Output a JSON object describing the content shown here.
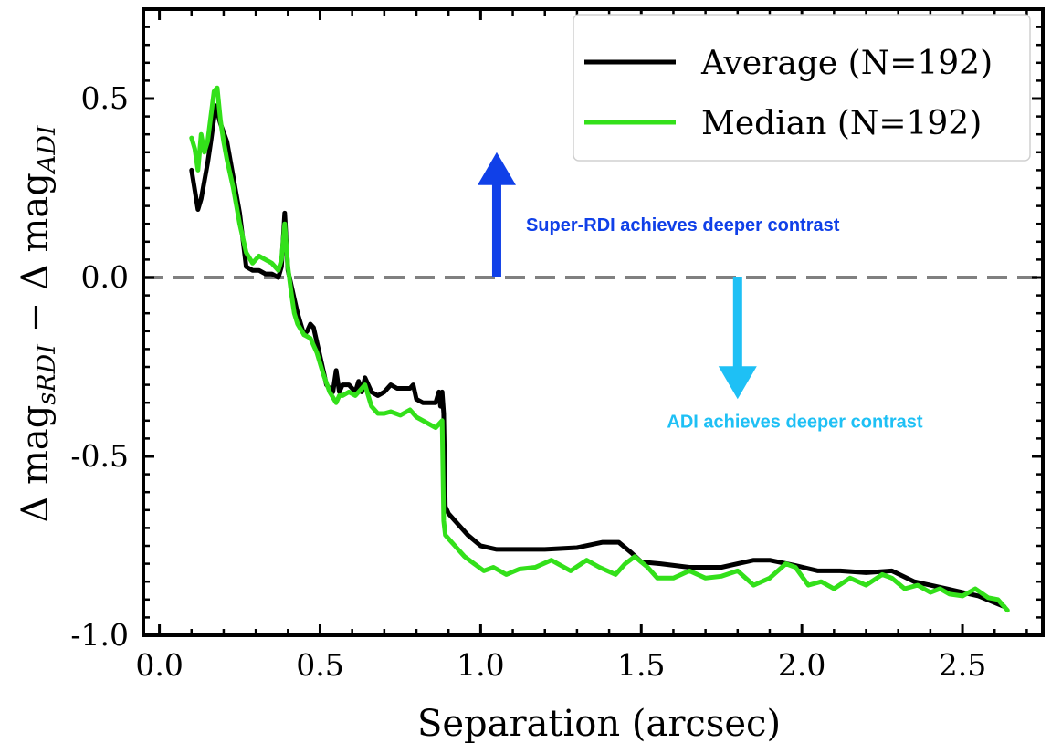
{
  "chart_data": {
    "type": "line",
    "xlabel": "Separation (arcsec)",
    "ylabel": "Δ mag_{sRDI} − Δ mag_{ADI}",
    "ylabel_parts": {
      "pre": "Δ mag",
      "sub1": "sRDI",
      "mid": " − Δ mag",
      "sub2": "ADI"
    },
    "xlim": [
      -0.05,
      2.75
    ],
    "ylim": [
      -1.0,
      0.75
    ],
    "xticks": [
      0.0,
      0.5,
      1.0,
      1.5,
      2.0,
      2.5
    ],
    "xtick_labels": [
      "0.0",
      "0.5",
      "1.0",
      "1.5",
      "2.0",
      "2.5"
    ],
    "yticks": [
      -1.0,
      -0.5,
      0.0,
      0.5
    ],
    "ytick_labels": [
      "-1.0",
      "-0.5",
      "0.0",
      "0.5"
    ],
    "grid": false,
    "legend_position": "top-right",
    "reference_line": {
      "y": 0.0,
      "style": "dashed",
      "color": "#808080"
    },
    "series": [
      {
        "name": "Average (N=192)",
        "color": "#000000",
        "x": [
          0.1,
          0.12,
          0.13,
          0.15,
          0.16,
          0.175,
          0.19,
          0.21,
          0.23,
          0.25,
          0.27,
          0.29,
          0.31,
          0.33,
          0.35,
          0.37,
          0.38,
          0.39,
          0.4,
          0.41,
          0.42,
          0.43,
          0.45,
          0.46,
          0.47,
          0.48,
          0.5,
          0.52,
          0.54,
          0.55,
          0.56,
          0.57,
          0.59,
          0.61,
          0.62,
          0.63,
          0.64,
          0.66,
          0.68,
          0.7,
          0.72,
          0.74,
          0.76,
          0.78,
          0.79,
          0.8,
          0.82,
          0.84,
          0.86,
          0.87,
          0.875,
          0.88,
          0.885,
          0.89,
          0.9,
          0.93,
          0.96,
          1.0,
          1.05,
          1.1,
          1.2,
          1.3,
          1.38,
          1.43,
          1.47,
          1.5,
          1.56,
          1.65,
          1.75,
          1.8,
          1.85,
          1.9,
          1.98,
          2.05,
          2.12,
          2.2,
          2.28,
          2.35,
          2.45,
          2.55,
          2.63
        ],
        "y": [
          0.3,
          0.19,
          0.22,
          0.32,
          0.38,
          0.48,
          0.43,
          0.38,
          0.28,
          0.18,
          0.03,
          0.02,
          0.02,
          0.01,
          0.01,
          0.0,
          0.03,
          0.18,
          0.02,
          -0.02,
          -0.06,
          -0.1,
          -0.16,
          -0.15,
          -0.13,
          -0.14,
          -0.22,
          -0.3,
          -0.32,
          -0.26,
          -0.32,
          -0.3,
          -0.3,
          -0.32,
          -0.29,
          -0.32,
          -0.28,
          -0.32,
          -0.33,
          -0.32,
          -0.3,
          -0.31,
          -0.31,
          -0.31,
          -0.3,
          -0.34,
          -0.35,
          -0.35,
          -0.35,
          -0.32,
          -0.36,
          -0.32,
          -0.38,
          -0.64,
          -0.66,
          -0.69,
          -0.72,
          -0.75,
          -0.76,
          -0.76,
          -0.76,
          -0.755,
          -0.74,
          -0.74,
          -0.77,
          -0.795,
          -0.8,
          -0.81,
          -0.81,
          -0.8,
          -0.79,
          -0.79,
          -0.805,
          -0.82,
          -0.82,
          -0.825,
          -0.82,
          -0.85,
          -0.87,
          -0.89,
          -0.92
        ]
      },
      {
        "name": "Median (N=192)",
        "color": "#33e01a",
        "x": [
          0.1,
          0.11,
          0.12,
          0.13,
          0.14,
          0.15,
          0.16,
          0.17,
          0.18,
          0.19,
          0.2,
          0.21,
          0.23,
          0.25,
          0.27,
          0.29,
          0.31,
          0.33,
          0.35,
          0.37,
          0.38,
          0.39,
          0.4,
          0.41,
          0.42,
          0.43,
          0.45,
          0.47,
          0.49,
          0.51,
          0.53,
          0.55,
          0.56,
          0.57,
          0.59,
          0.61,
          0.63,
          0.64,
          0.66,
          0.68,
          0.7,
          0.72,
          0.75,
          0.78,
          0.8,
          0.82,
          0.84,
          0.86,
          0.88,
          0.885,
          0.89,
          0.9,
          0.92,
          0.95,
          0.98,
          1.01,
          1.04,
          1.08,
          1.12,
          1.17,
          1.22,
          1.28,
          1.33,
          1.37,
          1.42,
          1.45,
          1.48,
          1.52,
          1.55,
          1.6,
          1.65,
          1.7,
          1.75,
          1.8,
          1.85,
          1.9,
          1.95,
          1.98,
          2.02,
          2.06,
          2.1,
          2.15,
          2.2,
          2.25,
          2.28,
          2.32,
          2.36,
          2.4,
          2.43,
          2.46,
          2.5,
          2.54,
          2.58,
          2.61,
          2.64
        ],
        "y": [
          0.39,
          0.36,
          0.3,
          0.4,
          0.35,
          0.38,
          0.45,
          0.52,
          0.53,
          0.44,
          0.38,
          0.33,
          0.25,
          0.15,
          0.07,
          0.04,
          0.06,
          0.05,
          0.04,
          0.02,
          0.05,
          0.15,
          0.03,
          -0.04,
          -0.1,
          -0.13,
          -0.16,
          -0.17,
          -0.21,
          -0.27,
          -0.32,
          -0.35,
          -0.33,
          -0.33,
          -0.32,
          -0.33,
          -0.31,
          -0.3,
          -0.36,
          -0.38,
          -0.38,
          -0.375,
          -0.385,
          -0.37,
          -0.39,
          -0.4,
          -0.41,
          -0.42,
          -0.4,
          -0.68,
          -0.72,
          -0.73,
          -0.75,
          -0.78,
          -0.8,
          -0.82,
          -0.81,
          -0.83,
          -0.815,
          -0.81,
          -0.79,
          -0.82,
          -0.79,
          -0.81,
          -0.83,
          -0.8,
          -0.78,
          -0.81,
          -0.84,
          -0.84,
          -0.82,
          -0.84,
          -0.835,
          -0.82,
          -0.86,
          -0.84,
          -0.8,
          -0.81,
          -0.86,
          -0.85,
          -0.87,
          -0.84,
          -0.86,
          -0.83,
          -0.84,
          -0.87,
          -0.86,
          -0.88,
          -0.87,
          -0.885,
          -0.89,
          -0.87,
          -0.895,
          -0.9,
          -0.93
        ]
      }
    ],
    "annotations": [
      {
        "text": "Super-RDI achieves deeper contrast",
        "color": "#1040e8"
      },
      {
        "text": "ADI achieves deeper contrast",
        "color": "#1ec0f5"
      }
    ],
    "arrows": [
      {
        "direction": "up",
        "color": "#1040e8",
        "x": 1.05,
        "y_from": 0.0,
        "y_to": 0.35
      },
      {
        "direction": "down",
        "color": "#1ec0f5",
        "x": 1.8,
        "y_from": 0.0,
        "y_to": -0.34
      }
    ]
  }
}
